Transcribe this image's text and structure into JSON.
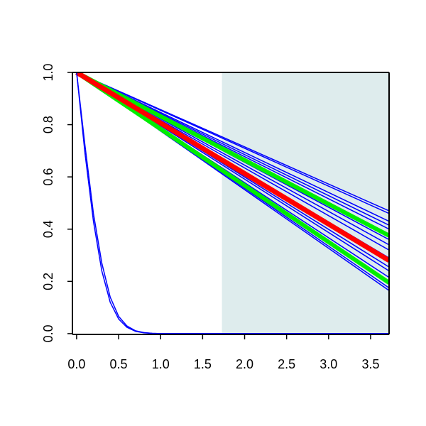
{
  "chart_data": {
    "type": "line",
    "title": "",
    "xlabel": "",
    "ylabel": "",
    "xlim": [
      -0.05,
      3.72
    ],
    "ylim": [
      -0.003,
      1.0
    ],
    "x_ticks": [
      "0.0",
      "0.5",
      "1.0",
      "1.5",
      "2.0",
      "2.5",
      "3.0",
      "3.5"
    ],
    "y_ticks": [
      "0.0",
      "0.2",
      "0.4",
      "0.6",
      "0.8",
      "1.0"
    ],
    "shaded_region": {
      "x_from": 1.73,
      "x_to": 3.72,
      "color": "#deeced"
    },
    "series": [
      {
        "color": "#0000ff",
        "width": 1.5,
        "x": [
          0,
          3.72
        ],
        "y": [
          1.0,
          0.47
        ]
      },
      {
        "color": "#0000ff",
        "width": 1.5,
        "x": [
          0,
          3.72
        ],
        "y": [
          1.0,
          0.46
        ]
      },
      {
        "color": "#0000ff",
        "width": 1.5,
        "x": [
          0,
          3.72
        ],
        "y": [
          1.0,
          0.43
        ]
      },
      {
        "color": "#0000ff",
        "width": 1.5,
        "x": [
          0,
          3.72
        ],
        "y": [
          1.0,
          0.415
        ]
      },
      {
        "color": "#0000ff",
        "width": 1.5,
        "x": [
          0,
          3.72
        ],
        "y": [
          1.0,
          0.4
        ]
      },
      {
        "color": "#0000ff",
        "width": 1.5,
        "x": [
          0,
          3.72
        ],
        "y": [
          1.0,
          0.36
        ]
      },
      {
        "color": "#0000ff",
        "width": 1.5,
        "x": [
          0,
          3.72
        ],
        "y": [
          1.0,
          0.34
        ]
      },
      {
        "color": "#0000ff",
        "width": 1.5,
        "x": [
          0,
          3.72
        ],
        "y": [
          1.0,
          0.32
        ]
      },
      {
        "color": "#0000ff",
        "width": 1.5,
        "x": [
          0,
          3.72
        ],
        "y": [
          1.0,
          0.29
        ]
      },
      {
        "color": "#0000ff",
        "width": 1.5,
        "x": [
          0,
          3.72
        ],
        "y": [
          1.0,
          0.255
        ]
      },
      {
        "color": "#0000ff",
        "width": 1.5,
        "x": [
          0,
          3.72
        ],
        "y": [
          1.0,
          0.24
        ]
      },
      {
        "color": "#0000ff",
        "width": 1.5,
        "x": [
          0,
          3.72
        ],
        "y": [
          1.0,
          0.215
        ]
      },
      {
        "color": "#0000ff",
        "width": 1.5,
        "x": [
          0,
          3.72
        ],
        "y": [
          1.0,
          0.19
        ]
      },
      {
        "color": "#0000ff",
        "width": 1.5,
        "x": [
          0,
          3.72
        ],
        "y": [
          1.0,
          0.175
        ]
      },
      {
        "color": "#0000ff",
        "width": 1.5,
        "x": [
          0,
          3.72
        ],
        "y": [
          1.0,
          0.165
        ]
      },
      {
        "color": "#00ee00",
        "width": 6,
        "x": [
          0,
          3.72
        ],
        "y": [
          1.0,
          0.375
        ]
      },
      {
        "color": "#00ee00",
        "width": 6,
        "x": [
          0,
          3.72
        ],
        "y": [
          1.0,
          0.195
        ]
      },
      {
        "color": "#ff0000",
        "width": 7,
        "x": [
          0,
          3.72
        ],
        "y": [
          1.0,
          0.28
        ]
      },
      {
        "color": "#0000ff",
        "width": 1.5,
        "x": [
          0,
          0.1,
          0.2,
          0.3,
          0.4,
          0.5,
          0.6,
          0.7,
          0.8,
          0.9,
          1.0,
          1.2,
          1.5,
          2.0,
          3.0,
          3.72
        ],
        "y": [
          1.0,
          0.69,
          0.43,
          0.24,
          0.12,
          0.056,
          0.024,
          0.009,
          0.003,
          0.001,
          0.0,
          0.0,
          0.0,
          0.0,
          0.0,
          0.0
        ]
      },
      {
        "color": "#0000ff",
        "width": 1.5,
        "x": [
          0,
          0.1,
          0.2,
          0.3,
          0.4,
          0.5,
          0.6,
          0.7,
          0.8,
          0.9,
          1.0,
          1.2,
          1.5,
          2.0,
          3.0,
          3.72
        ],
        "y": [
          1.0,
          0.72,
          0.46,
          0.27,
          0.14,
          0.066,
          0.029,
          0.011,
          0.004,
          0.001,
          0.0,
          0.0,
          0.0,
          0.0,
          0.0,
          0.0
        ]
      }
    ]
  }
}
